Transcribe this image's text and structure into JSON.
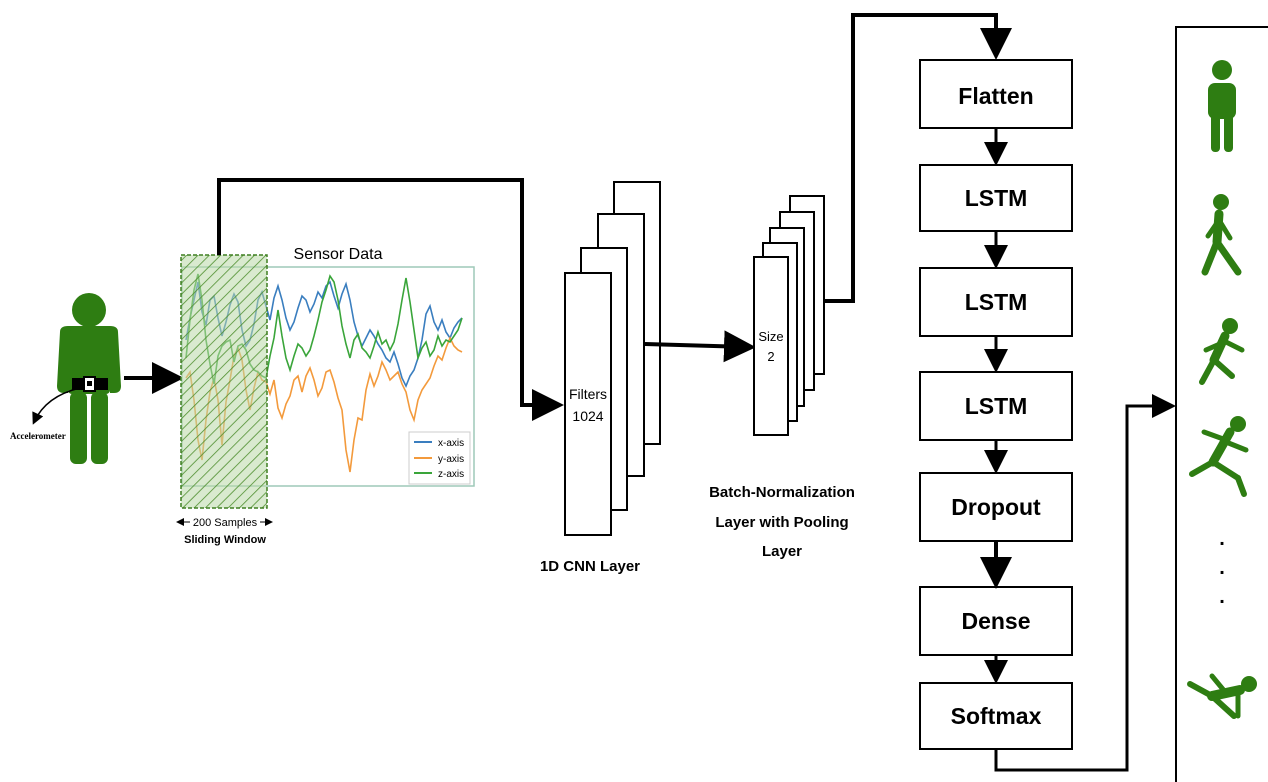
{
  "accelerometer_label": "Accelerometer",
  "sensor_plot": {
    "title": "Sensor Data",
    "legend": [
      "x-axis",
      "y-axis",
      "z-axis"
    ],
    "colors": {
      "x": "#3a7ebf",
      "y": "#f39a3c",
      "z": "#3aa53a"
    }
  },
  "window": {
    "samples_label": "200 Samples",
    "caption": "Sliding Window"
  },
  "cnn": {
    "text_line1": "Filters",
    "text_line2": "1024",
    "caption": "1D CNN Layer"
  },
  "pool": {
    "text_line1": "Size",
    "text_line2": "2",
    "caption_lines": [
      "Batch-Normalization",
      "Layer with Pooling",
      "Layer"
    ]
  },
  "layers": [
    "Flatten",
    "LSTM",
    "LSTM",
    "LSTM",
    "Dropout",
    "Dense",
    "Softmax"
  ],
  "outputs": {
    "icons": [
      "standing-person-icon",
      "walking-person-icon",
      "running-person-icon",
      "falling-person-icon",
      "falling-person-icon"
    ],
    "ellipsis": [
      ".",
      ".",
      "."
    ]
  },
  "colors": {
    "figure": "#2e7d12",
    "window_fill": "#6aa84f",
    "line": "#000000"
  }
}
